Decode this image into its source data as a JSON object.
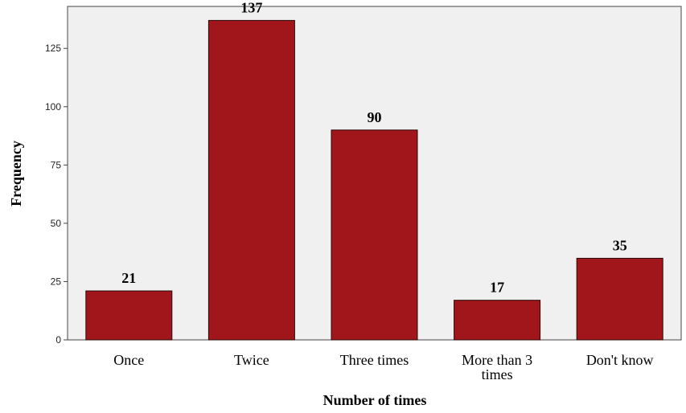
{
  "chart_data": {
    "type": "bar",
    "categories": [
      "Once",
      "Twice",
      "Three times",
      "More than 3 times",
      "Don't know"
    ],
    "category_label_lines": [
      [
        "Once"
      ],
      [
        "Twice"
      ],
      [
        "Three times"
      ],
      [
        "More than 3",
        "times"
      ],
      [
        "Don't know"
      ]
    ],
    "values": [
      21,
      137,
      90,
      17,
      35
    ],
    "data_labels": [
      "21",
      "137",
      "90",
      "17",
      "35"
    ],
    "xlabel": "Number of times",
    "ylabel": "Frequency",
    "ylim": [
      0,
      143
    ],
    "yticks": [
      0,
      25,
      50,
      75,
      100,
      125
    ],
    "grid": false,
    "colors": {
      "bar_fill": "#a0161b",
      "bar_stroke": "#2a0a0a",
      "plot_background": "#f0f0f0"
    }
  }
}
